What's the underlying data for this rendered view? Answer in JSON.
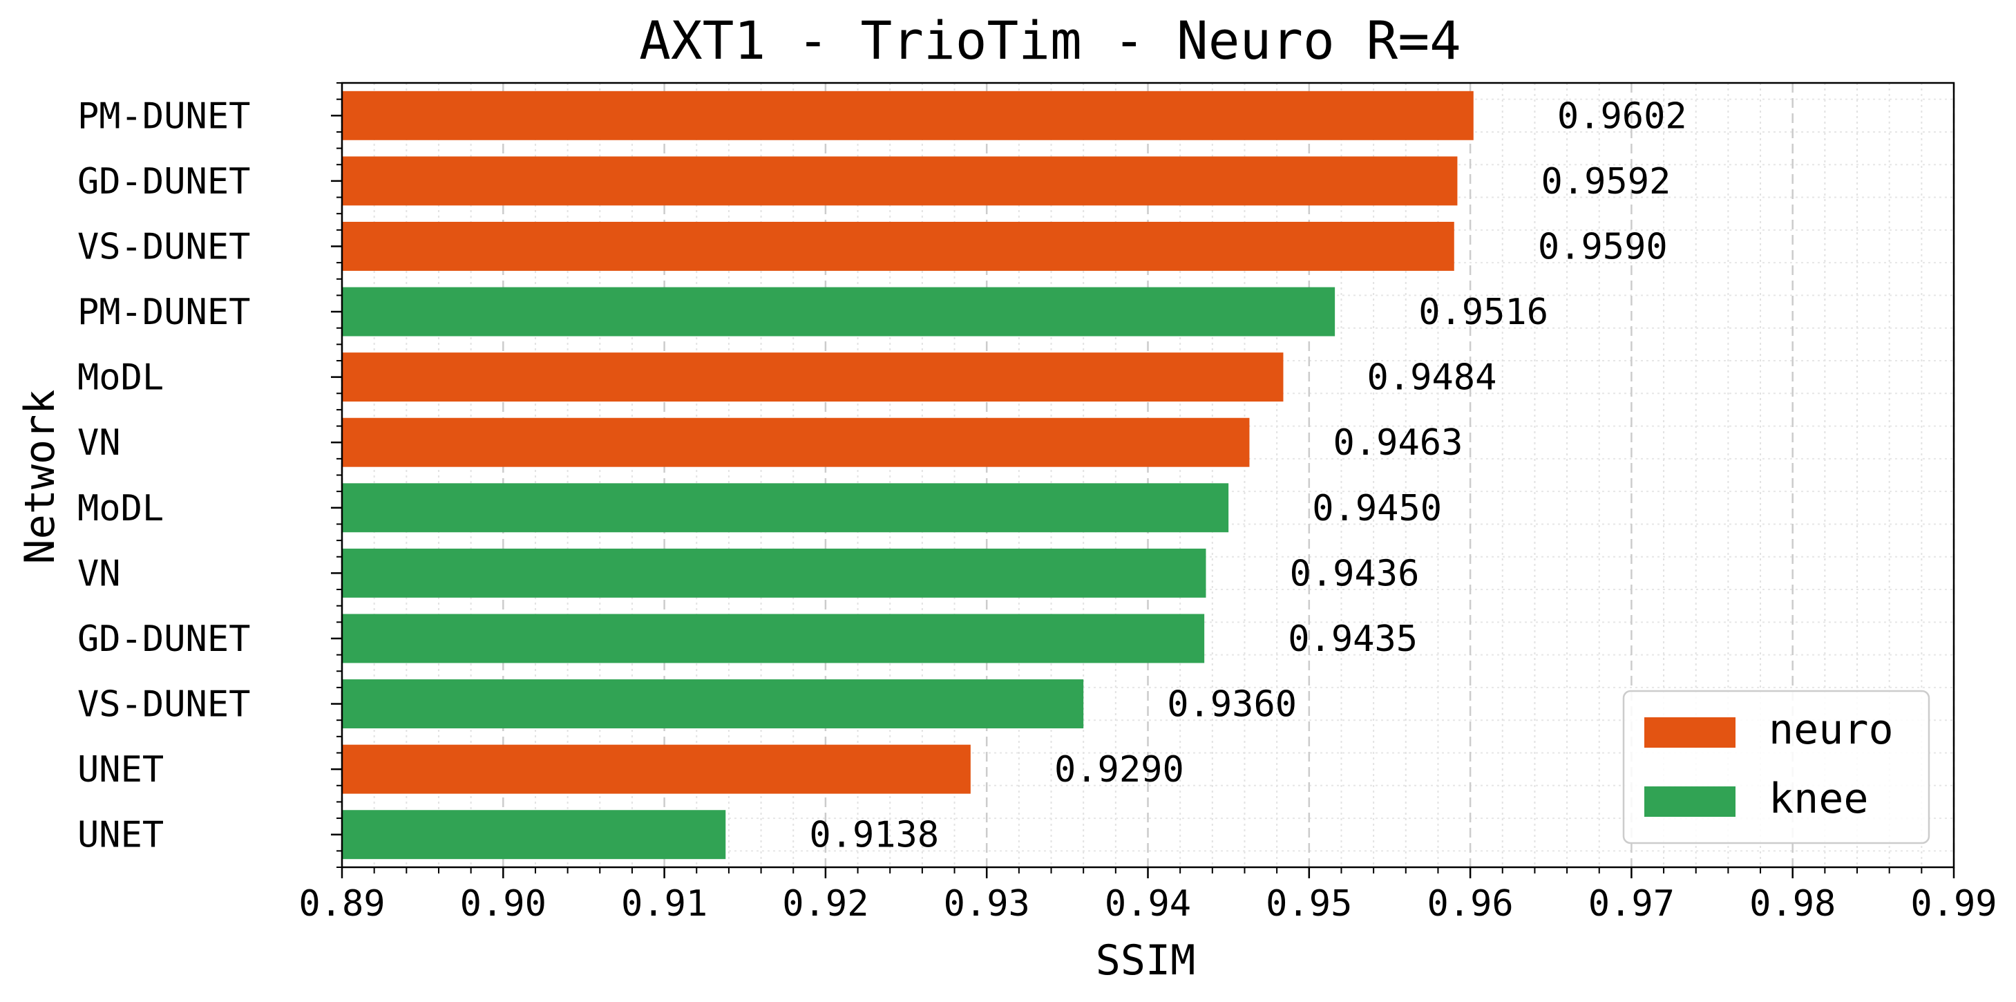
{
  "chart_data": {
    "type": "bar",
    "orientation": "horizontal",
    "title": "AXT1 - TrioTim - Neuro R=4",
    "xlabel": "SSIM",
    "ylabel": "Network",
    "xlim": [
      0.89,
      0.99
    ],
    "x_ticks": [
      "0.89",
      "0.90",
      "0.91",
      "0.92",
      "0.93",
      "0.94",
      "0.95",
      "0.96",
      "0.97",
      "0.98",
      "0.99"
    ],
    "grid": true,
    "legend_position": "bottom-right",
    "legend": [
      {
        "name": "neuro",
        "color": "#e35412"
      },
      {
        "name": "knee",
        "color": "#31a354"
      }
    ],
    "bars": [
      {
        "label": "PM-DUNET",
        "value": 0.9602,
        "value_label": "0.9602",
        "group": "neuro"
      },
      {
        "label": "GD-DUNET",
        "value": 0.9592,
        "value_label": "0.9592",
        "group": "neuro"
      },
      {
        "label": "VS-DUNET",
        "value": 0.959,
        "value_label": "0.9590",
        "group": "neuro"
      },
      {
        "label": "PM-DUNET",
        "value": 0.9516,
        "value_label": "0.9516",
        "group": "knee"
      },
      {
        "label": "MoDL",
        "value": 0.9484,
        "value_label": "0.9484",
        "group": "neuro"
      },
      {
        "label": "VN",
        "value": 0.9463,
        "value_label": "0.9463",
        "group": "neuro"
      },
      {
        "label": "MoDL",
        "value": 0.945,
        "value_label": "0.9450",
        "group": "knee"
      },
      {
        "label": "VN",
        "value": 0.9436,
        "value_label": "0.9436",
        "group": "knee"
      },
      {
        "label": "GD-DUNET",
        "value": 0.9435,
        "value_label": "0.9435",
        "group": "knee"
      },
      {
        "label": "VS-DUNET",
        "value": 0.936,
        "value_label": "0.9360",
        "group": "knee"
      },
      {
        "label": "UNET",
        "value": 0.929,
        "value_label": "0.9290",
        "group": "neuro"
      },
      {
        "label": "UNET",
        "value": 0.9138,
        "value_label": "0.9138",
        "group": "knee"
      }
    ]
  }
}
